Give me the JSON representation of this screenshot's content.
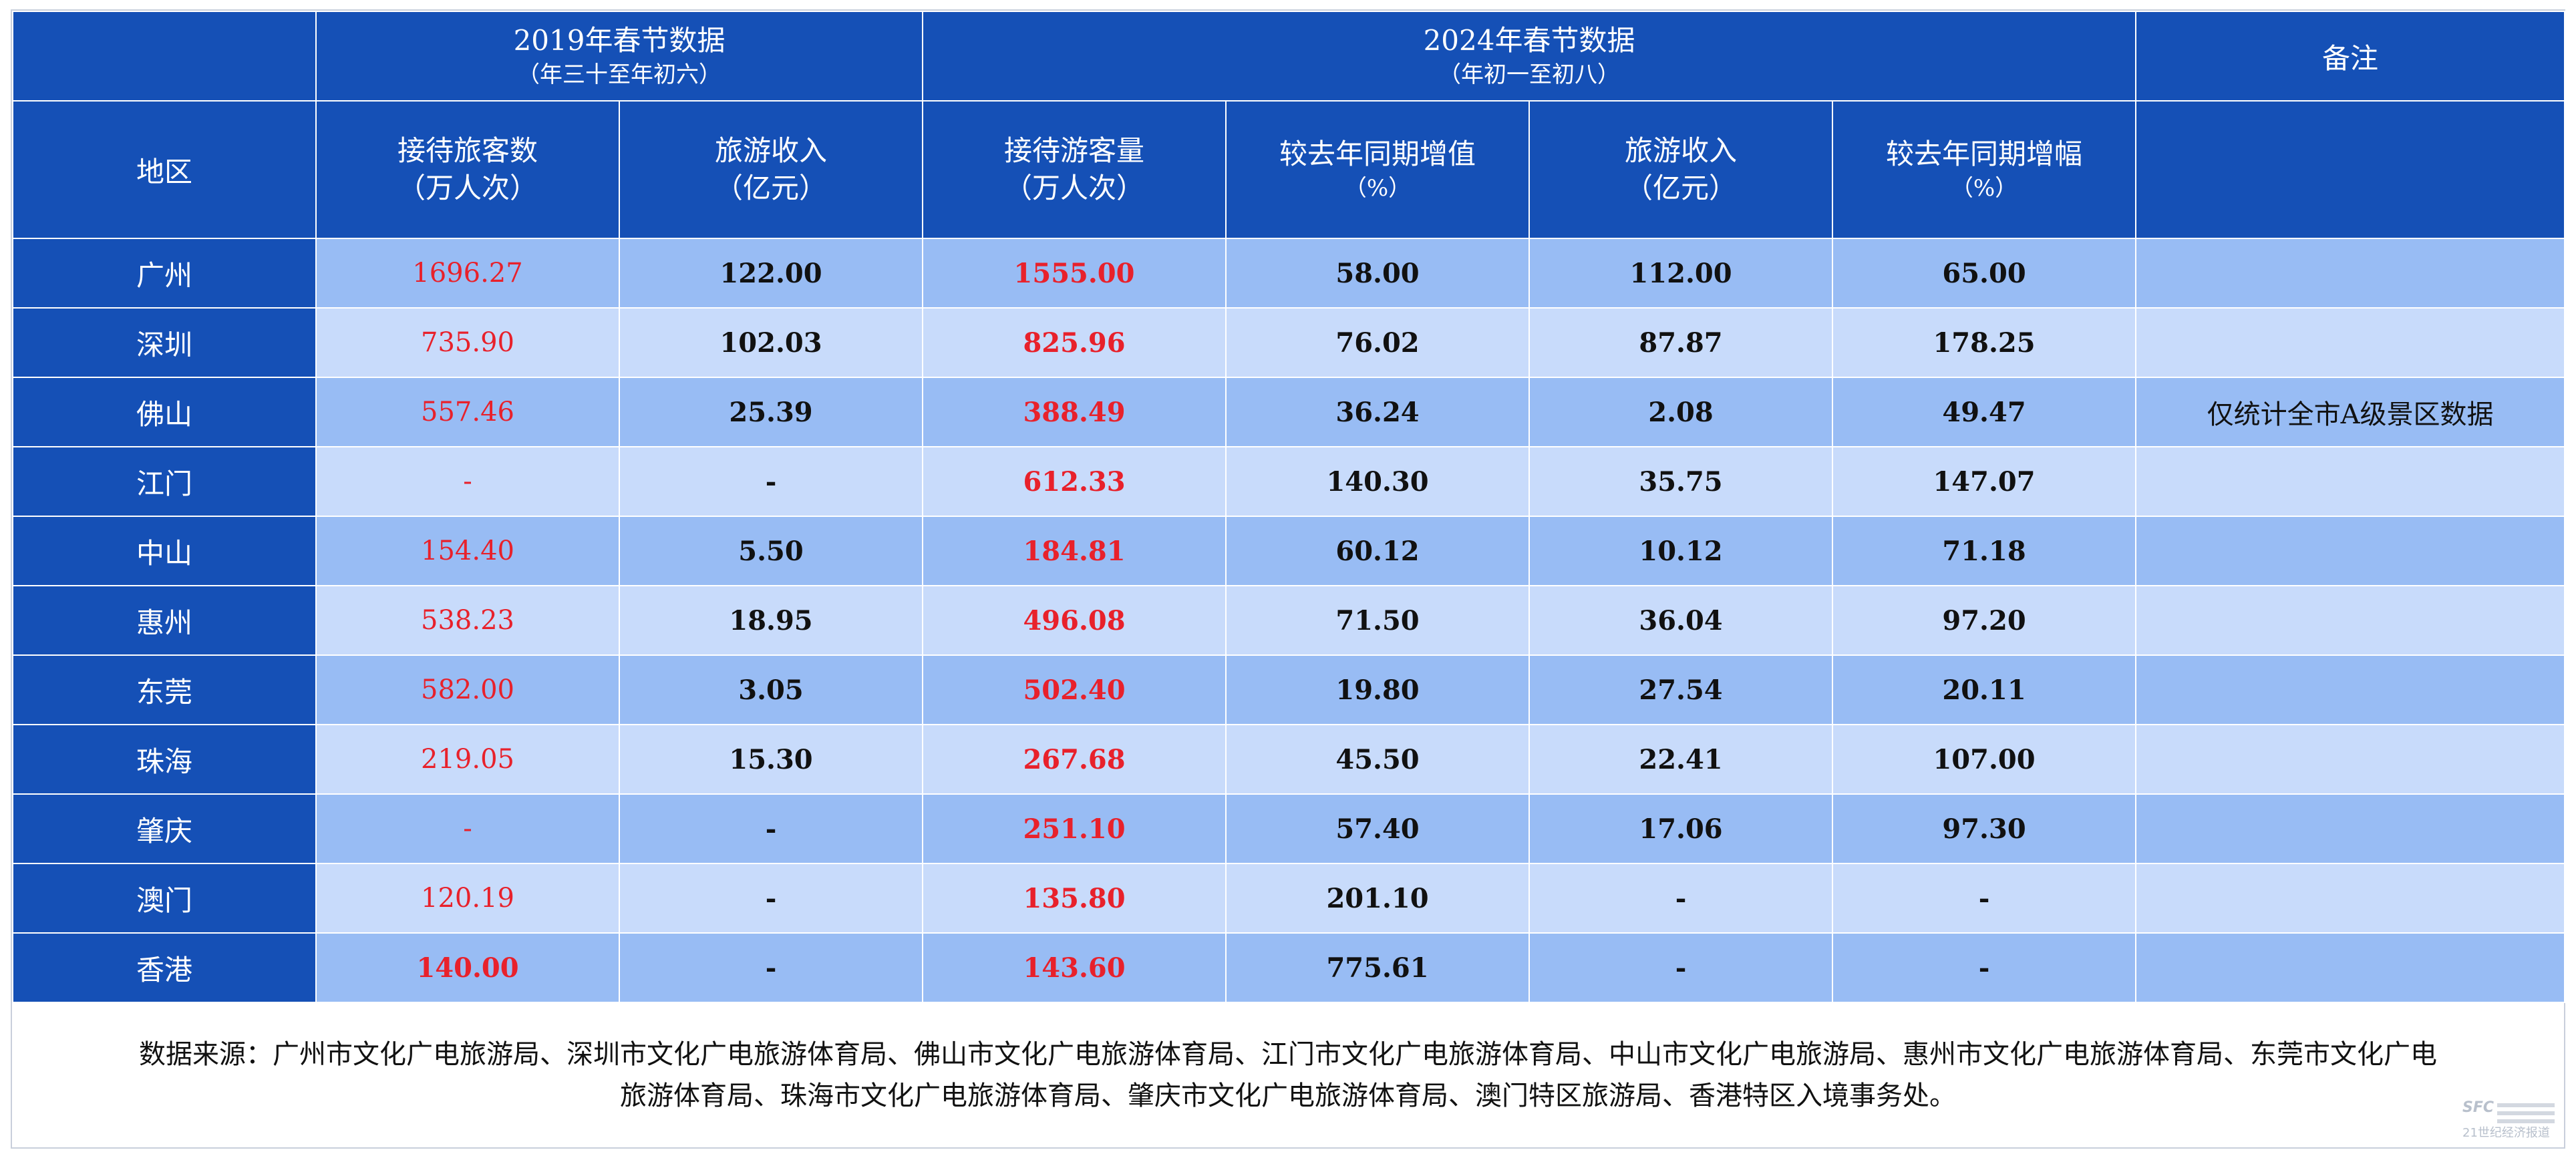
{
  "header": {
    "group_2019": {
      "title": "2019年春节数据",
      "subtitle": "（年三十至年初六）"
    },
    "group_2024": {
      "title": "2024年春节数据",
      "subtitle": "（年初一至初八）"
    },
    "remarks": "备注",
    "region": "地区",
    "columns": [
      {
        "title": "接待旅客数",
        "unit": "（万人次）"
      },
      {
        "title": "旅游收入",
        "unit": "（亿元）"
      },
      {
        "title": "接待游客量",
        "unit": "（万人次）"
      },
      {
        "title": "较去年同期增值",
        "unit": "（%）"
      },
      {
        "title": "旅游收入",
        "unit": "（亿元）"
      },
      {
        "title": "较去年同期增幅",
        "unit": "（%）"
      }
    ]
  },
  "rows": [
    {
      "region": "广州",
      "visitors_2019": "1696.27",
      "revenue_2019": "122.00",
      "visitors_2024": "1555.00",
      "visitors_growth": "58.00",
      "revenue_2024": "112.00",
      "revenue_growth": "65.00",
      "note": ""
    },
    {
      "region": "深圳",
      "visitors_2019": "735.90",
      "revenue_2019": "102.03",
      "visitors_2024": "825.96",
      "visitors_growth": "76.02",
      "revenue_2024": "87.87",
      "revenue_growth": "178.25",
      "note": ""
    },
    {
      "region": "佛山",
      "visitors_2019": "557.46",
      "revenue_2019": "25.39",
      "visitors_2024": "388.49",
      "visitors_growth": "36.24",
      "revenue_2024": "2.08",
      "revenue_growth": "49.47",
      "note": "仅统计全市A级景区数据"
    },
    {
      "region": "江门",
      "visitors_2019": "-",
      "revenue_2019": "-",
      "visitors_2024": "612.33",
      "visitors_growth": "140.30",
      "revenue_2024": "35.75",
      "revenue_growth": "147.07",
      "note": ""
    },
    {
      "region": "中山",
      "visitors_2019": "154.40",
      "revenue_2019": "5.50",
      "visitors_2024": "184.81",
      "visitors_growth": "60.12",
      "revenue_2024": "10.12",
      "revenue_growth": "71.18",
      "note": ""
    },
    {
      "region": "惠州",
      "visitors_2019": "538.23",
      "revenue_2019": "18.95",
      "visitors_2024": "496.08",
      "visitors_growth": "71.50",
      "revenue_2024": "36.04",
      "revenue_growth": "97.20",
      "note": ""
    },
    {
      "region": "东莞",
      "visitors_2019": "582.00",
      "revenue_2019": "3.05",
      "visitors_2024": "502.40",
      "visitors_growth": "19.80",
      "revenue_2024": "27.54",
      "revenue_growth": "20.11",
      "note": ""
    },
    {
      "region": "珠海",
      "visitors_2019": "219.05",
      "revenue_2019": "15.30",
      "visitors_2024": "267.68",
      "visitors_growth": "45.50",
      "revenue_2024": "22.41",
      "revenue_growth": "107.00",
      "note": ""
    },
    {
      "region": "肇庆",
      "visitors_2019": "-",
      "revenue_2019": "-",
      "visitors_2024": "251.10",
      "visitors_growth": "57.40",
      "revenue_2024": "17.06",
      "revenue_growth": "97.30",
      "note": ""
    },
    {
      "region": "澳门",
      "visitors_2019": "120.19",
      "revenue_2019": "-",
      "visitors_2024": "135.80",
      "visitors_growth": "201.10",
      "revenue_2024": "-",
      "revenue_growth": "-",
      "note": ""
    },
    {
      "region": "香港",
      "visitors_2019": "140.00",
      "revenue_2019": "-",
      "visitors_2024": "143.60",
      "visitors_growth": "775.61",
      "revenue_2024": "-",
      "revenue_growth": "-",
      "note": ""
    }
  ],
  "source": {
    "line1": "数据来源：广州市文化广电旅游局、深圳市文化广电旅游体育局、佛山市文化广电旅游体育局、江门市文化广电旅游体育局、中山市文化广电旅游局、惠州市文化广电旅游体育局、东莞市文化广电",
    "line2": "旅游体育局、珠海市文化广电旅游体育局、肇庆市文化广电旅游体育局、澳门特区旅游局、香港特区入境事务处。"
  },
  "logo": {
    "mark": "SFC",
    "caption": "21世纪经济报道"
  },
  "colors": {
    "header_blue": "#1550b6",
    "row_dark": "#98bcf4",
    "row_light": "#c8dbfb",
    "highlight_red": "#e8212b"
  }
}
